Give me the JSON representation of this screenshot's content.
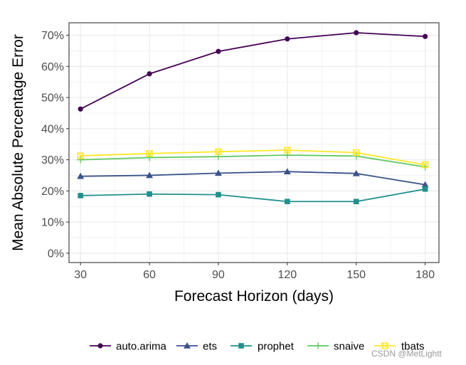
{
  "chart_data": {
    "type": "line",
    "title": "",
    "xlabel": "Forecast Horizon (days)",
    "ylabel": "Mean Absolute Percentage Error",
    "x": [
      30,
      60,
      90,
      120,
      150,
      180
    ],
    "xticks": [
      "30",
      "60",
      "90",
      "120",
      "150",
      "180"
    ],
    "xlim": [
      25,
      186
    ],
    "ylim": [
      -3,
      74
    ],
    "yticks": [
      0,
      10,
      20,
      30,
      40,
      50,
      60,
      70
    ],
    "ytick_labels": [
      "0%",
      "10%",
      "20%",
      "30%",
      "40%",
      "50%",
      "60%",
      "70%"
    ],
    "grid": true,
    "legend_position": "bottom",
    "series": [
      {
        "name": "auto.arima",
        "color": "#440154",
        "marker": "circle",
        "values": [
          46.3,
          57.6,
          64.8,
          68.8,
          70.8,
          69.6
        ]
      },
      {
        "name": "ets",
        "color": "#3b528b",
        "marker": "triangle",
        "values": [
          24.7,
          25.0,
          25.7,
          26.2,
          25.6,
          22.0
        ]
      },
      {
        "name": "prophet",
        "color": "#21908c",
        "marker": "square",
        "values": [
          18.5,
          19.0,
          18.8,
          16.6,
          16.6,
          20.6
        ]
      },
      {
        "name": "snaive",
        "color": "#5ec962",
        "marker": "plus",
        "values": [
          30.0,
          30.7,
          31.0,
          31.5,
          31.2,
          27.7
        ]
      },
      {
        "name": "tbats",
        "color": "#fde725",
        "marker": "square-x",
        "values": [
          31.3,
          32.0,
          32.6,
          33.1,
          32.3,
          28.4
        ]
      }
    ]
  },
  "watermark": "CSDN @MetLightt"
}
